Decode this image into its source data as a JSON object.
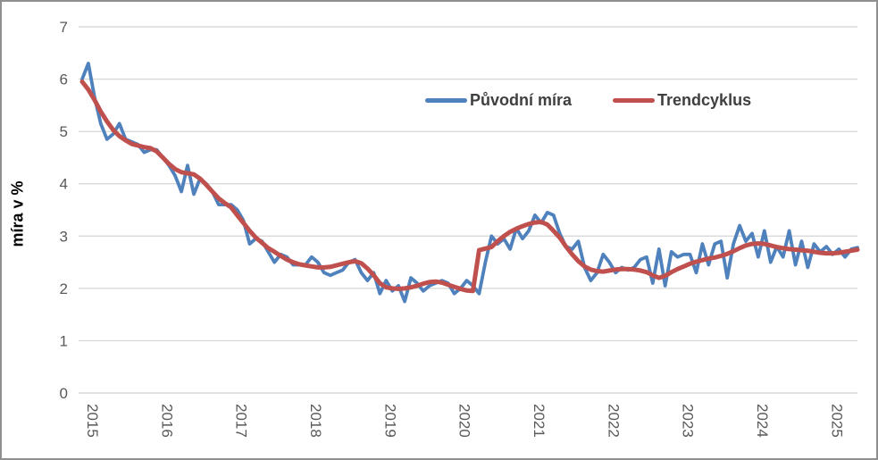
{
  "chart": {
    "y_axis_title": "míra v %",
    "legend": {
      "series1_label": "Původní míra",
      "series2_label": "Trendcyklus"
    },
    "colors": {
      "series1": "#4f81bd",
      "series2": "#c0504d",
      "gridline": "#d9d9d9",
      "tick_text": "#595959",
      "frame_border": "#8f8f8f"
    }
  },
  "chart_data": {
    "type": "line",
    "title": "",
    "xlabel": "",
    "ylabel": "míra v %",
    "ylim": [
      0,
      7
    ],
    "y_ticks": [
      0,
      1,
      2,
      3,
      4,
      5,
      6,
      7
    ],
    "x_tick_labels": [
      "2015",
      "2016",
      "2017",
      "2018",
      "2019",
      "2020",
      "2021",
      "2022",
      "2023",
      "2024",
      "2025"
    ],
    "x_start": "2015-01",
    "x_frequency": "monthly",
    "grid": "horizontal",
    "legend_position": "inside-top-center",
    "series": [
      {
        "name": "Původní míra",
        "color": "#4f81bd",
        "values": [
          6.0,
          6.3,
          5.65,
          5.15,
          4.85,
          4.95,
          5.15,
          4.85,
          4.8,
          4.75,
          4.6,
          4.65,
          4.65,
          4.5,
          4.35,
          4.15,
          3.85,
          4.35,
          3.8,
          4.1,
          4.0,
          3.85,
          3.6,
          3.6,
          3.6,
          3.5,
          3.3,
          2.85,
          2.95,
          2.9,
          2.7,
          2.5,
          2.65,
          2.6,
          2.45,
          2.45,
          2.45,
          2.6,
          2.5,
          2.3,
          2.25,
          2.3,
          2.35,
          2.5,
          2.55,
          2.3,
          2.15,
          2.3,
          1.9,
          2.15,
          1.95,
          2.05,
          1.75,
          2.2,
          2.1,
          1.95,
          2.05,
          2.1,
          2.15,
          2.1,
          1.9,
          2.0,
          2.15,
          2.05,
          1.9,
          2.5,
          3.0,
          2.85,
          2.95,
          2.75,
          3.15,
          2.95,
          3.1,
          3.4,
          3.25,
          3.45,
          3.4,
          3.05,
          2.8,
          2.75,
          2.9,
          2.4,
          2.15,
          2.3,
          2.65,
          2.5,
          2.3,
          2.4,
          2.35,
          2.4,
          2.55,
          2.6,
          2.1,
          2.75,
          2.05,
          2.7,
          2.6,
          2.65,
          2.65,
          2.3,
          2.85,
          2.45,
          2.85,
          2.9,
          2.2,
          2.85,
          3.2,
          2.9,
          3.05,
          2.6,
          3.1,
          2.5,
          2.8,
          2.6,
          3.1,
          2.45,
          2.9,
          2.4,
          2.85,
          2.7,
          2.8,
          2.65,
          2.75,
          2.6,
          2.75,
          2.78
        ]
      },
      {
        "name": "Trendcyklus",
        "color": "#c0504d",
        "values": [
          5.95,
          5.8,
          5.6,
          5.38,
          5.19,
          5.03,
          4.91,
          4.83,
          4.76,
          4.73,
          4.7,
          4.68,
          4.62,
          4.5,
          4.38,
          4.28,
          4.22,
          4.2,
          4.18,
          4.1,
          3.98,
          3.85,
          3.72,
          3.63,
          3.55,
          3.4,
          3.25,
          3.1,
          2.97,
          2.87,
          2.77,
          2.7,
          2.62,
          2.55,
          2.5,
          2.46,
          2.44,
          2.42,
          2.4,
          2.4,
          2.41,
          2.44,
          2.47,
          2.5,
          2.52,
          2.48,
          2.38,
          2.25,
          2.1,
          2.02,
          2.0,
          1.99,
          2.0,
          2.02,
          2.05,
          2.09,
          2.12,
          2.13,
          2.11,
          2.07,
          2.03,
          1.99,
          1.96,
          1.95,
          2.73,
          2.76,
          2.79,
          2.9,
          3.0,
          3.08,
          3.14,
          3.19,
          3.23,
          3.26,
          3.27,
          3.22,
          3.1,
          2.97,
          2.8,
          2.65,
          2.52,
          2.42,
          2.36,
          2.33,
          2.32,
          2.34,
          2.36,
          2.37,
          2.37,
          2.36,
          2.34,
          2.31,
          2.25,
          2.2,
          2.24,
          2.31,
          2.37,
          2.42,
          2.47,
          2.51,
          2.54,
          2.57,
          2.59,
          2.62,
          2.66,
          2.71,
          2.77,
          2.82,
          2.85,
          2.86,
          2.85,
          2.82,
          2.79,
          2.77,
          2.75,
          2.74,
          2.73,
          2.72,
          2.7,
          2.68,
          2.67,
          2.67,
          2.68,
          2.7,
          2.72,
          2.74
        ]
      }
    ]
  }
}
